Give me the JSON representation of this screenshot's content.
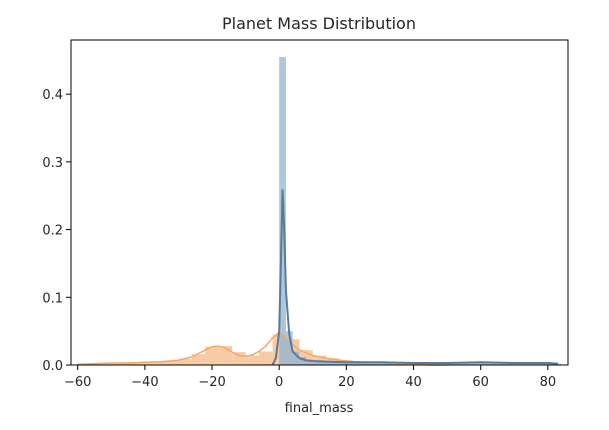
{
  "chart_data": {
    "type": "area",
    "title": "Planet Mass Distribution",
    "xlabel": "final_mass",
    "ylabel": "",
    "xlim": [
      -62,
      86
    ],
    "ylim": [
      0,
      0.48
    ],
    "xticks": [
      -60,
      -40,
      -20,
      0,
      20,
      40,
      60,
      80
    ],
    "xtick_labels": [
      "−60",
      "−40",
      "−20",
      "0",
      "20",
      "40",
      "60",
      "80"
    ],
    "yticks": [
      0,
      0.1,
      0.2,
      0.3,
      0.4
    ],
    "ytick_labels": [
      "0.0",
      "0.1",
      "0.2",
      "0.3",
      "0.4"
    ],
    "grid": false,
    "legend": "none",
    "series": [
      {
        "color": "#f5b98a",
        "kde_color": "#f0a86b",
        "histogram": {
          "bin_edges": [
            -58,
            -54,
            -50,
            -46,
            -42,
            -38,
            -34,
            -30,
            -26,
            -22,
            -18,
            -14,
            -10,
            -6,
            -2,
            2,
            6,
            10,
            14,
            18,
            22,
            26,
            30,
            34,
            38
          ],
          "counts": [
            0.002,
            0.003,
            0.003,
            0.004,
            0.004,
            0.005,
            0.006,
            0.009,
            0.016,
            0.027,
            0.028,
            0.019,
            0.014,
            0.02,
            0.045,
            0.038,
            0.022,
            0.014,
            0.01,
            0.007,
            0.005,
            0.004,
            0.003,
            0.002
          ]
        },
        "kde": {
          "x": [
            -60,
            -55,
            -50,
            -45,
            -40,
            -35,
            -30,
            -26,
            -22,
            -20,
            -18,
            -16,
            -14,
            -12,
            -10,
            -8,
            -6,
            -4,
            -2,
            0,
            2,
            4,
            6,
            8,
            10,
            14,
            18,
            22,
            26,
            30,
            35,
            40,
            45,
            50
          ],
          "y": [
            0.001,
            0.002,
            0.003,
            0.003,
            0.004,
            0.005,
            0.007,
            0.012,
            0.022,
            0.027,
            0.028,
            0.025,
            0.019,
            0.014,
            0.013,
            0.015,
            0.02,
            0.028,
            0.04,
            0.048,
            0.04,
            0.03,
            0.022,
            0.018,
            0.014,
            0.01,
            0.007,
            0.005,
            0.004,
            0.003,
            0.002,
            0.001,
            0.0,
            0.0
          ]
        }
      },
      {
        "color": "#8fb3d1",
        "kde_color": "#5a7a99",
        "histogram": {
          "bin_edges": [
            0,
            2,
            4,
            6,
            8,
            10,
            14,
            18,
            22,
            30,
            40,
            50,
            60,
            70,
            80,
            84
          ],
          "counts": [
            0.455,
            0.05,
            0.02,
            0.012,
            0.008,
            0.006,
            0.005,
            0.004,
            0.003,
            0.003,
            0.003,
            0.003,
            0.004,
            0.003,
            0.002
          ]
        },
        "kde": {
          "x": [
            -2,
            -1,
            0,
            0.5,
            1,
            1.5,
            2,
            3,
            4,
            6,
            8,
            10,
            14,
            20,
            30,
            40,
            50,
            60,
            70,
            80,
            83
          ],
          "y": [
            0.0,
            0.01,
            0.05,
            0.15,
            0.258,
            0.2,
            0.11,
            0.045,
            0.02,
            0.01,
            0.007,
            0.006,
            0.005,
            0.004,
            0.004,
            0.003,
            0.003,
            0.004,
            0.003,
            0.003,
            0.002
          ]
        }
      }
    ]
  }
}
